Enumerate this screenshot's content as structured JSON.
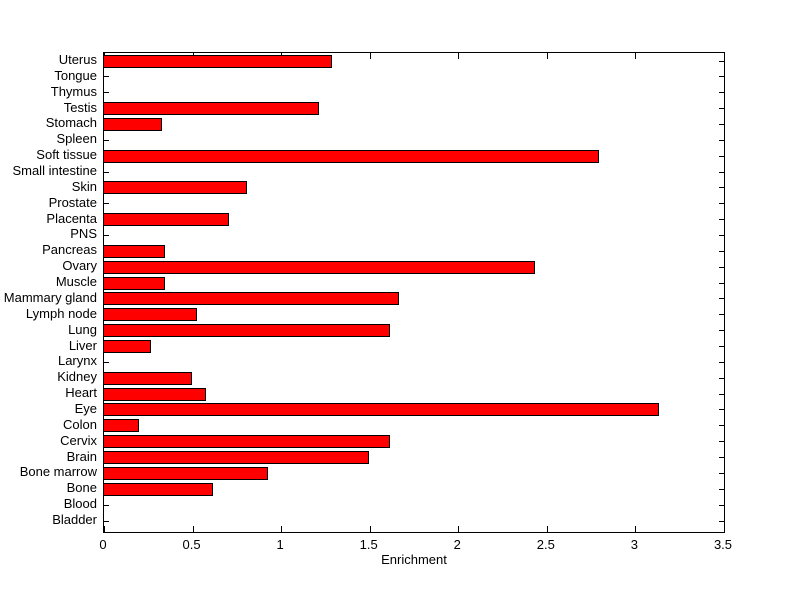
{
  "chart_data": {
    "type": "bar",
    "orientation": "horizontal",
    "title": "",
    "xlabel": "Enrichment",
    "ylabel": "",
    "xlim": [
      0,
      3.5
    ],
    "x_ticks": [
      0,
      0.5,
      1,
      1.5,
      2,
      2.5,
      3,
      3.5
    ],
    "x_tick_labels": [
      "0",
      "0.5",
      "1",
      "1.5",
      "2",
      "2.5",
      "3",
      "3.5"
    ],
    "grid": false,
    "legend_position": "none",
    "bar_color": "#ff0000",
    "bar_edge_color": "#000000",
    "axis_color": "#000000",
    "background_color": "#ffffff",
    "categories": [
      "Uterus",
      "Tongue",
      "Thymus",
      "Testis",
      "Stomach",
      "Spleen",
      "Soft tissue",
      "Small intestine",
      "Skin",
      "Prostate",
      "Placenta",
      "PNS",
      "Pancreas",
      "Ovary",
      "Muscle",
      "Mammary gland",
      "Lymph node",
      "Lung",
      "Liver",
      "Larynx",
      "Kidney",
      "Heart",
      "Eye",
      "Colon",
      "Cervix",
      "Brain",
      "Bone marrow",
      "Bone",
      "Blood",
      "Bladder"
    ],
    "values": [
      1.28,
      0,
      0,
      1.21,
      0.32,
      0,
      2.79,
      0,
      0.8,
      0,
      0.7,
      0,
      0.34,
      2.43,
      0.34,
      1.66,
      0.52,
      1.61,
      0.26,
      0,
      0.49,
      0.57,
      3.13,
      0.19,
      1.61,
      1.49,
      0.92,
      0.61,
      0,
      0
    ]
  }
}
